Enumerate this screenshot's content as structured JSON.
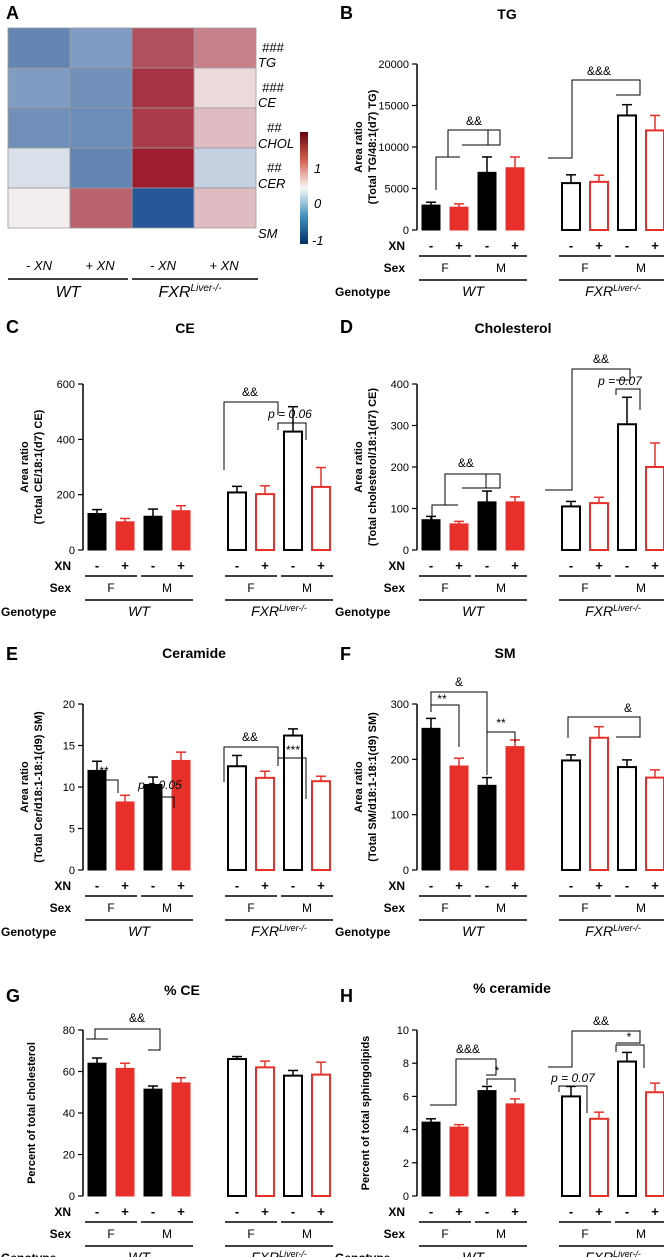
{
  "figure": {
    "xn_label": "XN",
    "sex_label": "Sex",
    "genotype_label": "Genotype",
    "minus": "-",
    "plus": "+",
    "sex_f": "F",
    "sex_m": "M",
    "wt": "WT",
    "fxr_main": "FXR",
    "fxr_sup": "Liver-/-",
    "colors": {
      "black": "#000000",
      "red": "#e8302a",
      "heat_neg": "#08306b",
      "heat_pos": "#67000d"
    }
  },
  "heatmap": {
    "panel_letter": "A",
    "rows": [
      "TG",
      "CE",
      "CHOL",
      "CER",
      "SM"
    ],
    "row_marks": [
      "###",
      "###",
      "##",
      "##",
      ""
    ],
    "columns": [
      "- XN",
      "+ XN",
      "- XN",
      "+ XN"
    ],
    "groups": [
      "WT",
      "FXR"
    ],
    "values": [
      [
        -0.75,
        -0.6,
        0.85,
        0.6
      ],
      [
        -0.6,
        -0.68,
        1.0,
        0.15
      ],
      [
        -0.68,
        -0.7,
        0.95,
        0.3
      ],
      [
        -0.15,
        -0.75,
        1.1,
        -0.25
      ],
      [
        0.05,
        0.75,
        -1.05,
        0.3
      ]
    ],
    "colorbar_ticks": [
      "1",
      "0",
      "-1"
    ]
  },
  "chart_data": [
    {
      "type": "bar",
      "panel": "B",
      "title": "TG",
      "ylabel": [
        "Area ratio",
        "(Total TG/48:1(d7) TG)"
      ],
      "ylim": [
        0,
        20000
      ],
      "yticks": [
        "0",
        "5000",
        "10000",
        "15000",
        "20000"
      ],
      "categories": [
        "WT F -",
        "WT F +",
        "WT M -",
        "WT M +",
        "FXR F -",
        "FXR F +",
        "FXR M -",
        "FXR M +"
      ],
      "values": [
        3000,
        2750,
        6950,
        7500,
        5650,
        5800,
        13800,
        12000
      ],
      "errors": [
        350,
        400,
        1850,
        1300,
        1000,
        800,
        1300,
        1800
      ],
      "annotations": [
        "&&",
        "&&&"
      ]
    },
    {
      "type": "bar",
      "panel": "C",
      "title": "CE",
      "ylabel": [
        "Area ratio",
        "(Total CE/18:1(d7) CE)"
      ],
      "ylim": [
        0,
        600
      ],
      "yticks": [
        "0",
        "200",
        "400",
        "600"
      ],
      "categories": [
        "WT F -",
        "WT F +",
        "WT M -",
        "WT M +",
        "FXR F -",
        "FXR F +",
        "FXR M -",
        "FXR M +"
      ],
      "values": [
        132,
        102,
        122,
        142,
        208,
        202,
        428,
        228
      ],
      "errors": [
        14,
        12,
        26,
        18,
        22,
        30,
        90,
        70
      ],
      "annotations": [
        "&&",
        "p = 0.06"
      ]
    },
    {
      "type": "bar",
      "panel": "D",
      "title": "Cholesterol",
      "ylabel": [
        "Area ratio",
        "(Total cholesterol/18:1(d7) CE)"
      ],
      "ylim": [
        0,
        400
      ],
      "yticks": [
        "0",
        "100",
        "200",
        "300",
        "400"
      ],
      "categories": [
        "WT F -",
        "WT F +",
        "WT M -",
        "WT M +",
        "FXR F -",
        "FXR F +",
        "FXR M -",
        "FXR M +"
      ],
      "values": [
        73,
        63,
        116,
        116,
        105,
        113,
        303,
        200
      ],
      "errors": [
        8,
        6,
        26,
        12,
        12,
        14,
        65,
        58
      ],
      "annotations": [
        "&&",
        "&&",
        "p = 0.07"
      ]
    },
    {
      "type": "bar",
      "panel": "E",
      "title": "Ceramide",
      "ylabel": [
        "Area ratio",
        "(Total Cer/d18:1-18:1(d9) SM)"
      ],
      "ylim": [
        0,
        20
      ],
      "yticks": [
        "0",
        "5",
        "10",
        "15",
        "20"
      ],
      "categories": [
        "WT F -",
        "WT F +",
        "WT M -",
        "WT M +",
        "FXR F -",
        "FXR F +",
        "FXR M -",
        "FXR M +"
      ],
      "values": [
        12.0,
        8.2,
        10.3,
        13.2,
        12.5,
        11.1,
        16.2,
        10.7
      ],
      "errors": [
        1.1,
        0.8,
        0.9,
        1.0,
        1.3,
        0.8,
        0.8,
        0.6
      ],
      "annotations": [
        "**",
        "p = 0.05",
        "&&",
        "***"
      ]
    },
    {
      "type": "bar",
      "panel": "F",
      "title": "SM",
      "ylabel": [
        "Area ratio",
        "(Total SM/d18:1-18:1(d9) SM)"
      ],
      "ylim": [
        0,
        300
      ],
      "yticks": [
        "0",
        "100",
        "200",
        "300"
      ],
      "categories": [
        "WT F -",
        "WT F +",
        "WT M -",
        "WT M +",
        "FXR F -",
        "FXR F +",
        "FXR M -",
        "FXR M +"
      ],
      "values": [
        256,
        188,
        153,
        223,
        198,
        239,
        186,
        167
      ],
      "errors": [
        18,
        14,
        14,
        12,
        10,
        20,
        13,
        14
      ],
      "annotations": [
        "&",
        "**",
        "**",
        "&"
      ]
    },
    {
      "type": "bar",
      "panel": "G",
      "title": "% CE",
      "ylabel": [
        "Percent of total cholesterol"
      ],
      "ylim": [
        0,
        80
      ],
      "yticks": [
        "0",
        "20",
        "40",
        "60",
        "80"
      ],
      "categories": [
        "WT F -",
        "WT F +",
        "WT M -",
        "WT M +",
        "FXR F -",
        "FXR F +",
        "FXR M -",
        "FXR M +"
      ],
      "values": [
        64,
        61.5,
        51.5,
        54.5,
        66,
        62,
        58,
        58.5
      ],
      "errors": [
        2.5,
        2.5,
        1.5,
        2.5,
        1.2,
        3,
        2.5,
        6
      ],
      "annotations": [
        "&&"
      ]
    },
    {
      "type": "bar",
      "panel": "H",
      "title": "% ceramide",
      "ylabel": [
        "Percent of total sphingolipids"
      ],
      "ylim": [
        0,
        10
      ],
      "yticks": [
        "0",
        "2",
        "4",
        "6",
        "8",
        "10"
      ],
      "categories": [
        "WT F -",
        "WT F +",
        "WT M -",
        "WT M +",
        "FXR F -",
        "FXR F +",
        "FXR M -",
        "FXR M +"
      ],
      "values": [
        4.45,
        4.15,
        6.35,
        5.55,
        6.0,
        4.65,
        8.1,
        6.25
      ],
      "errors": [
        0.2,
        0.15,
        0.25,
        0.3,
        0.6,
        0.4,
        0.55,
        0.55
      ],
      "annotations": [
        "&&&",
        "*",
        "p = 0.07",
        "&&",
        "*"
      ]
    }
  ]
}
